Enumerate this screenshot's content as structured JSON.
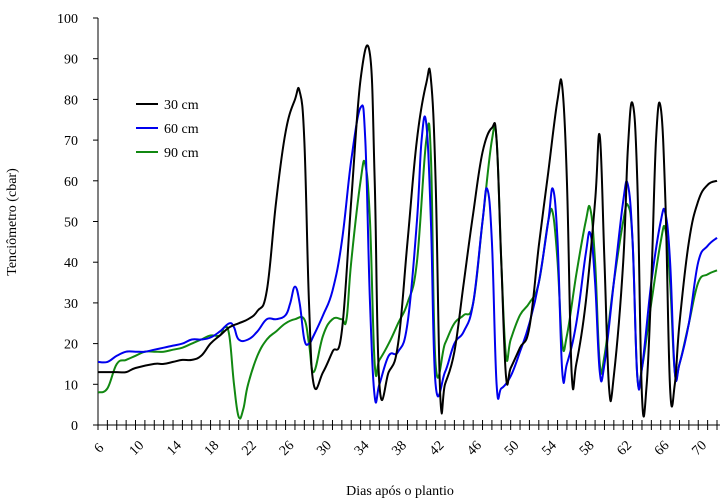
{
  "chart_data": {
    "type": "line",
    "xlabel": "Dias após o plantio",
    "ylabel": "Tenciômetro (cbar)",
    "xlim": [
      6,
      72
    ],
    "ylim": [
      0,
      100
    ],
    "x_tick_labels": [
      "6",
      "10",
      "14",
      "18",
      "22",
      "26",
      "30",
      "34",
      "38",
      "42",
      "46",
      "50",
      "54",
      "58",
      "62",
      "66",
      "70"
    ],
    "y_tick_labels": [
      "0",
      "10",
      "20",
      "30",
      "40",
      "50",
      "60",
      "70",
      "80",
      "90",
      "100"
    ],
    "grid": false,
    "legend_position": "top-left",
    "series": [
      {
        "name": "30 cm",
        "color": "#000000",
        "points": [
          [
            6,
            13
          ],
          [
            8,
            13
          ],
          [
            9,
            13
          ],
          [
            10,
            14
          ],
          [
            12,
            15
          ],
          [
            13,
            15
          ],
          [
            14,
            15.5
          ],
          [
            15,
            16
          ],
          [
            16,
            16
          ],
          [
            17,
            17
          ],
          [
            18,
            20
          ],
          [
            19,
            22
          ],
          [
            20,
            24
          ],
          [
            21,
            25
          ],
          [
            22,
            26
          ],
          [
            23,
            28
          ],
          [
            24,
            33
          ],
          [
            25,
            55
          ],
          [
            26,
            72
          ],
          [
            27,
            80
          ],
          [
            27.5,
            82
          ],
          [
            28,
            70
          ],
          [
            28.5,
            30
          ],
          [
            29,
            10
          ],
          [
            30,
            13
          ],
          [
            31,
            18
          ],
          [
            32,
            23
          ],
          [
            33,
            55
          ],
          [
            34,
            85
          ],
          [
            35,
            91
          ],
          [
            35.5,
            60
          ],
          [
            36,
            10
          ],
          [
            37,
            13
          ],
          [
            38,
            20
          ],
          [
            39,
            45
          ],
          [
            40,
            70
          ],
          [
            41,
            84
          ],
          [
            41.5,
            85
          ],
          [
            42,
            60
          ],
          [
            42.5,
            7
          ],
          [
            43,
            10
          ],
          [
            44,
            18
          ],
          [
            45,
            35
          ],
          [
            46,
            52
          ],
          [
            47,
            67
          ],
          [
            48,
            73
          ],
          [
            48.5,
            70
          ],
          [
            49,
            40
          ],
          [
            49.5,
            12
          ],
          [
            50,
            14
          ],
          [
            51,
            19
          ],
          [
            52,
            24
          ],
          [
            53,
            44
          ],
          [
            54,
            62
          ],
          [
            55,
            80
          ],
          [
            55.5,
            83
          ],
          [
            56,
            60
          ],
          [
            56.5,
            13
          ],
          [
            57,
            15
          ],
          [
            58,
            30
          ],
          [
            59,
            55
          ],
          [
            59.5,
            71
          ],
          [
            60,
            40
          ],
          [
            60.5,
            9
          ],
          [
            61,
            12
          ],
          [
            62,
            40
          ],
          [
            62.5,
            68
          ],
          [
            63,
            79
          ],
          [
            63.5,
            60
          ],
          [
            64,
            7
          ],
          [
            64.5,
            10
          ],
          [
            65,
            35
          ],
          [
            65.5,
            70
          ],
          [
            66,
            78
          ],
          [
            66.5,
            55
          ],
          [
            67,
            9
          ],
          [
            67.5,
            10
          ],
          [
            68,
            25
          ],
          [
            69,
            45
          ],
          [
            70,
            55
          ],
          [
            71,
            59
          ],
          [
            72,
            60
          ]
        ]
      },
      {
        "name": "60 cm",
        "color": "#0000ee",
        "points": [
          [
            6,
            15.5
          ],
          [
            7,
            15.5
          ],
          [
            8,
            17
          ],
          [
            9,
            18
          ],
          [
            10,
            18
          ],
          [
            11,
            18
          ],
          [
            12,
            18.5
          ],
          [
            13,
            19
          ],
          [
            14,
            19.5
          ],
          [
            15,
            20
          ],
          [
            16,
            21
          ],
          [
            17,
            21
          ],
          [
            18,
            21.5
          ],
          [
            19,
            23
          ],
          [
            20,
            25
          ],
          [
            20.5,
            24
          ],
          [
            21,
            21
          ],
          [
            22,
            21
          ],
          [
            23,
            23
          ],
          [
            24,
            26
          ],
          [
            25,
            26
          ],
          [
            26,
            27
          ],
          [
            26.5,
            30
          ],
          [
            27,
            34
          ],
          [
            27.5,
            30
          ],
          [
            28,
            21
          ],
          [
            28.5,
            20
          ],
          [
            29,
            22
          ],
          [
            30,
            27
          ],
          [
            31,
            33
          ],
          [
            32,
            45
          ],
          [
            33,
            65
          ],
          [
            34,
            78
          ],
          [
            34.5,
            70
          ],
          [
            35,
            30
          ],
          [
            35.5,
            7
          ],
          [
            36,
            10
          ],
          [
            37,
            17
          ],
          [
            38,
            18
          ],
          [
            39,
            25
          ],
          [
            40,
            50
          ],
          [
            40.5,
            70
          ],
          [
            41,
            74
          ],
          [
            41.5,
            50
          ],
          [
            42,
            10
          ],
          [
            43,
            13
          ],
          [
            44,
            20
          ],
          [
            45,
            23
          ],
          [
            46,
            30
          ],
          [
            47,
            50
          ],
          [
            47.5,
            58
          ],
          [
            48,
            45
          ],
          [
            48.5,
            10
          ],
          [
            49,
            9
          ],
          [
            50,
            12
          ],
          [
            51,
            18
          ],
          [
            52,
            25
          ],
          [
            53,
            35
          ],
          [
            54,
            50
          ],
          [
            54.5,
            58
          ],
          [
            55,
            45
          ],
          [
            55.5,
            13
          ],
          [
            56,
            15
          ],
          [
            57,
            25
          ],
          [
            58,
            42
          ],
          [
            58.5,
            47
          ],
          [
            59,
            35
          ],
          [
            59.5,
            13
          ],
          [
            60,
            15
          ],
          [
            61,
            35
          ],
          [
            62,
            55
          ],
          [
            62.5,
            59
          ],
          [
            63,
            45
          ],
          [
            63.5,
            12
          ],
          [
            64,
            14
          ],
          [
            65,
            35
          ],
          [
            66,
            50
          ],
          [
            66.5,
            52
          ],
          [
            67,
            40
          ],
          [
            67.5,
            13
          ],
          [
            68,
            15
          ],
          [
            69,
            25
          ],
          [
            70,
            40
          ],
          [
            71,
            44
          ],
          [
            72,
            46
          ]
        ]
      },
      {
        "name": "90 cm",
        "color": "#118811",
        "points": [
          [
            6,
            8
          ],
          [
            7,
            9
          ],
          [
            8,
            15
          ],
          [
            9,
            16
          ],
          [
            10,
            17
          ],
          [
            11,
            18
          ],
          [
            12,
            18
          ],
          [
            13,
            18
          ],
          [
            14,
            18.5
          ],
          [
            15,
            19
          ],
          [
            16,
            20
          ],
          [
            17,
            21
          ],
          [
            18,
            22
          ],
          [
            19,
            22
          ],
          [
            19.5,
            24
          ],
          [
            20,
            22
          ],
          [
            20.5,
            10
          ],
          [
            21,
            2
          ],
          [
            21.5,
            4
          ],
          [
            22,
            10
          ],
          [
            23,
            17
          ],
          [
            24,
            21
          ],
          [
            25,
            23
          ],
          [
            26,
            25
          ],
          [
            27,
            26
          ],
          [
            28,
            26
          ],
          [
            28.5,
            20
          ],
          [
            29,
            13
          ],
          [
            30,
            22
          ],
          [
            31,
            26
          ],
          [
            32,
            26
          ],
          [
            32.5,
            26
          ],
          [
            33,
            40
          ],
          [
            34,
            60
          ],
          [
            34.5,
            64
          ],
          [
            35,
            50
          ],
          [
            35.5,
            15
          ],
          [
            36,
            16
          ],
          [
            37,
            20
          ],
          [
            38,
            25
          ],
          [
            39,
            30
          ],
          [
            40,
            40
          ],
          [
            41,
            70
          ],
          [
            41.5,
            66
          ],
          [
            42,
            15
          ],
          [
            43,
            20
          ],
          [
            44,
            25
          ],
          [
            45,
            27
          ],
          [
            46,
            30
          ],
          [
            47,
            50
          ],
          [
            48,
            70
          ],
          [
            48.5,
            70
          ],
          [
            49,
            40
          ],
          [
            49.5,
            17
          ],
          [
            50,
            21
          ],
          [
            51,
            27
          ],
          [
            52,
            30
          ],
          [
            53,
            35
          ],
          [
            54,
            50
          ],
          [
            54.5,
            52
          ],
          [
            55,
            40
          ],
          [
            55.5,
            20
          ],
          [
            56,
            22
          ],
          [
            57,
            37
          ],
          [
            58,
            50
          ],
          [
            58.5,
            53
          ],
          [
            59,
            40
          ],
          [
            59.5,
            15
          ],
          [
            60,
            17
          ],
          [
            61,
            35
          ],
          [
            62,
            50
          ],
          [
            62.5,
            54
          ],
          [
            63,
            45
          ],
          [
            63.5,
            12
          ],
          [
            64,
            14
          ],
          [
            65,
            30
          ],
          [
            66,
            45
          ],
          [
            66.5,
            48
          ],
          [
            67,
            35
          ],
          [
            67.5,
            13
          ],
          [
            68,
            15
          ],
          [
            69,
            25
          ],
          [
            70,
            35
          ],
          [
            71,
            37
          ],
          [
            72,
            38
          ]
        ]
      }
    ]
  }
}
